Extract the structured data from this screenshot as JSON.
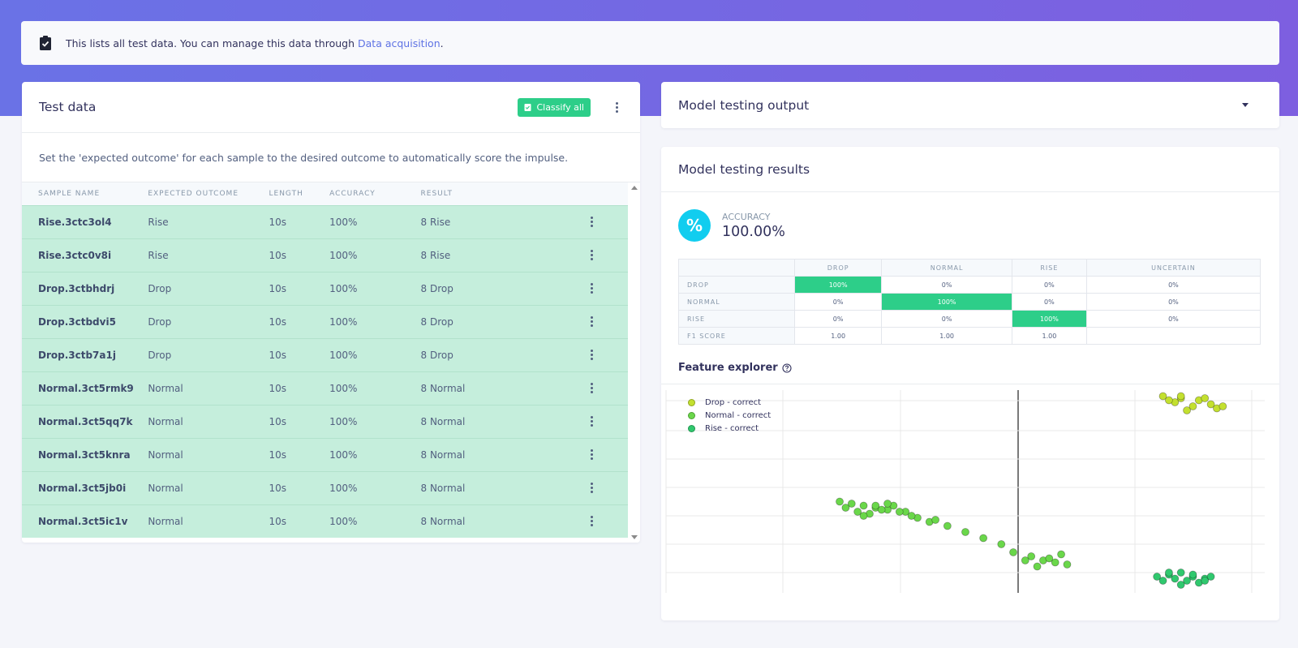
{
  "info_bar": {
    "text": "This lists all test data. You can manage this data through",
    "link": "Data acquisition",
    "suffix": "."
  },
  "test_data": {
    "title": "Test data",
    "classify_button": "Classify all",
    "description": "Set the 'expected outcome' for each sample to the desired outcome to automatically score the impulse.",
    "columns": [
      "SAMPLE NAME",
      "EXPECTED OUTCOME",
      "LENGTH",
      "ACCURACY",
      "RESULT"
    ],
    "rows": [
      {
        "name": "Rise.3ctc3ol4",
        "expected": "Rise",
        "length": "10s",
        "accuracy": "100%",
        "result": "8 Rise"
      },
      {
        "name": "Rise.3ctc0v8i",
        "expected": "Rise",
        "length": "10s",
        "accuracy": "100%",
        "result": "8 Rise"
      },
      {
        "name": "Drop.3ctbhdrj",
        "expected": "Drop",
        "length": "10s",
        "accuracy": "100%",
        "result": "8 Drop"
      },
      {
        "name": "Drop.3ctbdvi5",
        "expected": "Drop",
        "length": "10s",
        "accuracy": "100%",
        "result": "8 Drop"
      },
      {
        "name": "Drop.3ctb7a1j",
        "expected": "Drop",
        "length": "10s",
        "accuracy": "100%",
        "result": "8 Drop"
      },
      {
        "name": "Normal.3ct5rmk9",
        "expected": "Normal",
        "length": "10s",
        "accuracy": "100%",
        "result": "8 Normal"
      },
      {
        "name": "Normal.3ct5qq7k",
        "expected": "Normal",
        "length": "10s",
        "accuracy": "100%",
        "result": "8 Normal"
      },
      {
        "name": "Normal.3ct5knra",
        "expected": "Normal",
        "length": "10s",
        "accuracy": "100%",
        "result": "8 Normal"
      },
      {
        "name": "Normal.3ct5jb0i",
        "expected": "Normal",
        "length": "10s",
        "accuracy": "100%",
        "result": "8 Normal"
      },
      {
        "name": "Normal.3ct5ic1v",
        "expected": "Normal",
        "length": "10s",
        "accuracy": "100%",
        "result": "8 Normal"
      }
    ],
    "row_color": "#c5eedc"
  },
  "output": {
    "title": "Model testing output"
  },
  "results": {
    "title": "Model testing results",
    "accuracy_label": "ACCURACY",
    "accuracy_value": "100.00%",
    "confusion": {
      "columns": [
        "DROP",
        "NORMAL",
        "RISE",
        "UNCERTAIN"
      ],
      "rows": [
        {
          "label": "DROP",
          "values": [
            "100%",
            "0%",
            "0%",
            "0%"
          ],
          "hit": 0
        },
        {
          "label": "NORMAL",
          "values": [
            "0%",
            "100%",
            "0%",
            "0%"
          ],
          "hit": 1
        },
        {
          "label": "RISE",
          "values": [
            "0%",
            "0%",
            "100%",
            "0%"
          ],
          "hit": 2
        },
        {
          "label": "F1 SCORE",
          "values": [
            "1.00",
            "1.00",
            "1.00",
            ""
          ],
          "hit": -1
        }
      ]
    },
    "feature_explorer_title": "Feature explorer"
  },
  "colors": {
    "accent": "#5e72e4",
    "success": "#2dce89",
    "info": "#11cdef"
  },
  "chart_data": {
    "type": "scatter",
    "title": "",
    "xlabel": "",
    "ylabel": "",
    "grid": true,
    "legend_position": "top-left",
    "series": [
      {
        "name": "Drop - correct",
        "color": "#c3e02f",
        "x": [
          0.83,
          0.86,
          0.89,
          0.91,
          0.85,
          0.88,
          0.92,
          0.87,
          0.84,
          0.9,
          0.93,
          0.86
        ],
        "y": [
          0.97,
          0.96,
          0.95,
          0.93,
          0.94,
          0.92,
          0.91,
          0.9,
          0.95,
          0.96,
          0.92,
          0.97
        ]
      },
      {
        "name": "Normal - correct",
        "color": "#6ad74a",
        "x": [
          0.29,
          0.31,
          0.33,
          0.35,
          0.37,
          0.3,
          0.32,
          0.34,
          0.36,
          0.38,
          0.4,
          0.42,
          0.44,
          0.47,
          0.5,
          0.53,
          0.56,
          0.58,
          0.61,
          0.63,
          0.65,
          0.67,
          0.6,
          0.62,
          0.64,
          0.66,
          0.33,
          0.37,
          0.41,
          0.45,
          0.35,
          0.39
        ],
        "y": [
          0.45,
          0.44,
          0.43,
          0.42,
          0.41,
          0.42,
          0.4,
          0.39,
          0.41,
          0.43,
          0.4,
          0.37,
          0.35,
          0.33,
          0.3,
          0.27,
          0.24,
          0.2,
          0.18,
          0.16,
          0.15,
          0.14,
          0.16,
          0.13,
          0.17,
          0.19,
          0.38,
          0.44,
          0.38,
          0.36,
          0.43,
          0.4
        ]
      },
      {
        "name": "Rise - correct",
        "color": "#30c86e",
        "x": [
          0.82,
          0.84,
          0.86,
          0.88,
          0.9,
          0.83,
          0.85,
          0.87,
          0.89,
          0.91,
          0.84,
          0.86,
          0.88,
          0.9
        ],
        "y": [
          0.08,
          0.09,
          0.1,
          0.08,
          0.07,
          0.06,
          0.07,
          0.06,
          0.05,
          0.08,
          0.1,
          0.04,
          0.09,
          0.06
        ]
      }
    ]
  }
}
